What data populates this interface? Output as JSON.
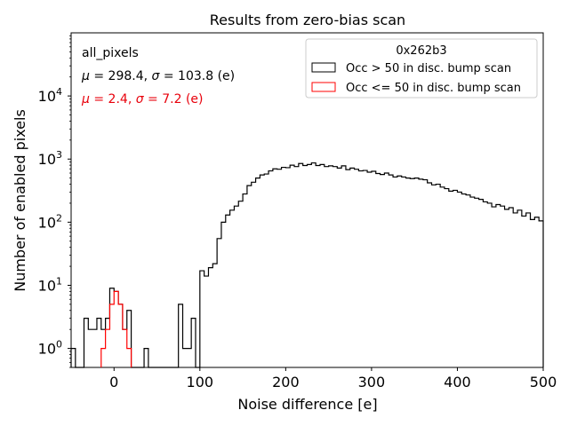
{
  "chart_data": {
    "type": "histogram",
    "title": "Results from zero-bias scan",
    "xlabel": "Noise difference [e]",
    "ylabel": "Number of enabled pixels",
    "xlim": [
      -50,
      500
    ],
    "ylim": [
      0.5,
      100000
    ],
    "yscale": "log",
    "xticks": [
      0,
      100,
      200,
      300,
      400,
      500
    ],
    "xtick_labels": [
      "0",
      "100",
      "200",
      "300",
      "400",
      "500"
    ],
    "yticks": [
      1,
      10,
      100,
      1000,
      10000
    ],
    "ytick_labels_base": "10",
    "ytick_labels_exp": [
      "0",
      "1",
      "2",
      "3",
      "4"
    ],
    "bin_width": 5,
    "annotations": {
      "label": "all_pixels",
      "stats_black": {
        "mu_prefix": "μ",
        "mu_value": " = 298.4, ",
        "sigma_prefix": "σ",
        "sigma_value": " = 103.8 (e)",
        "color": "#000000"
      },
      "stats_red": {
        "mu_prefix": "μ",
        "mu_value": " = 2.4, ",
        "sigma_prefix": "σ",
        "sigma_value": " = 7.2 (e)",
        "color": "#e8000b"
      }
    },
    "legend": {
      "title": "0x262b3",
      "placement": "top-right",
      "entries": [
        {
          "label": "Occ > 50 in disc. bump scan",
          "color": "#000000"
        },
        {
          "label": "Occ <= 50 in disc. bump scan",
          "color": "#ff0000"
        }
      ]
    },
    "series": [
      {
        "name": "Occ > 50 in disc. bump scan",
        "color": "#000000",
        "bins": [
          [
            -50,
            1
          ],
          [
            -45,
            0
          ],
          [
            -40,
            0
          ],
          [
            -35,
            3
          ],
          [
            -30,
            2
          ],
          [
            -25,
            2
          ],
          [
            -20,
            3
          ],
          [
            -15,
            2
          ],
          [
            -10,
            3
          ],
          [
            -5,
            9
          ],
          [
            0,
            8
          ],
          [
            5,
            5
          ],
          [
            10,
            2
          ],
          [
            15,
            4
          ],
          [
            20,
            0
          ],
          [
            25,
            0
          ],
          [
            30,
            0
          ],
          [
            35,
            1
          ],
          [
            40,
            0
          ],
          [
            45,
            0
          ],
          [
            50,
            0
          ],
          [
            55,
            0
          ],
          [
            60,
            0
          ],
          [
            65,
            0
          ],
          [
            70,
            0
          ],
          [
            75,
            5
          ],
          [
            80,
            1
          ],
          [
            85,
            1
          ],
          [
            90,
            3
          ],
          [
            95,
            0
          ],
          [
            100,
            17
          ],
          [
            105,
            14
          ],
          [
            110,
            19
          ],
          [
            115,
            22
          ],
          [
            120,
            55
          ],
          [
            125,
            100
          ],
          [
            130,
            130
          ],
          [
            135,
            155
          ],
          [
            140,
            180
          ],
          [
            145,
            215
          ],
          [
            150,
            280
          ],
          [
            155,
            380
          ],
          [
            160,
            430
          ],
          [
            165,
            500
          ],
          [
            170,
            560
          ],
          [
            175,
            580
          ],
          [
            180,
            650
          ],
          [
            185,
            700
          ],
          [
            190,
            690
          ],
          [
            195,
            740
          ],
          [
            200,
            730
          ],
          [
            205,
            800
          ],
          [
            210,
            760
          ],
          [
            215,
            850
          ],
          [
            220,
            790
          ],
          [
            225,
            820
          ],
          [
            230,
            870
          ],
          [
            235,
            790
          ],
          [
            240,
            820
          ],
          [
            245,
            760
          ],
          [
            250,
            780
          ],
          [
            255,
            760
          ],
          [
            260,
            720
          ],
          [
            265,
            780
          ],
          [
            270,
            680
          ],
          [
            275,
            720
          ],
          [
            280,
            690
          ],
          [
            285,
            650
          ],
          [
            290,
            660
          ],
          [
            295,
            620
          ],
          [
            300,
            640
          ],
          [
            305,
            590
          ],
          [
            310,
            570
          ],
          [
            315,
            600
          ],
          [
            320,
            560
          ],
          [
            325,
            520
          ],
          [
            330,
            540
          ],
          [
            335,
            520
          ],
          [
            340,
            500
          ],
          [
            345,
            490
          ],
          [
            350,
            500
          ],
          [
            355,
            480
          ],
          [
            360,
            470
          ],
          [
            365,
            420
          ],
          [
            370,
            390
          ],
          [
            375,
            400
          ],
          [
            380,
            360
          ],
          [
            385,
            340
          ],
          [
            390,
            310
          ],
          [
            395,
            320
          ],
          [
            400,
            300
          ],
          [
            405,
            280
          ],
          [
            410,
            270
          ],
          [
            415,
            250
          ],
          [
            420,
            240
          ],
          [
            425,
            230
          ],
          [
            430,
            210
          ],
          [
            435,
            200
          ],
          [
            440,
            175
          ],
          [
            445,
            190
          ],
          [
            450,
            180
          ],
          [
            455,
            160
          ],
          [
            460,
            170
          ],
          [
            465,
            140
          ],
          [
            470,
            155
          ],
          [
            475,
            125
          ],
          [
            480,
            140
          ],
          [
            485,
            110
          ],
          [
            490,
            120
          ],
          [
            495,
            105
          ]
        ]
      },
      {
        "name": "Occ <= 50 in disc. bump scan",
        "color": "#ff0000",
        "bins": [
          [
            -15,
            1
          ],
          [
            -10,
            2
          ],
          [
            -5,
            5
          ],
          [
            0,
            8
          ],
          [
            5,
            5
          ],
          [
            10,
            2
          ],
          [
            15,
            1
          ]
        ]
      }
    ]
  }
}
